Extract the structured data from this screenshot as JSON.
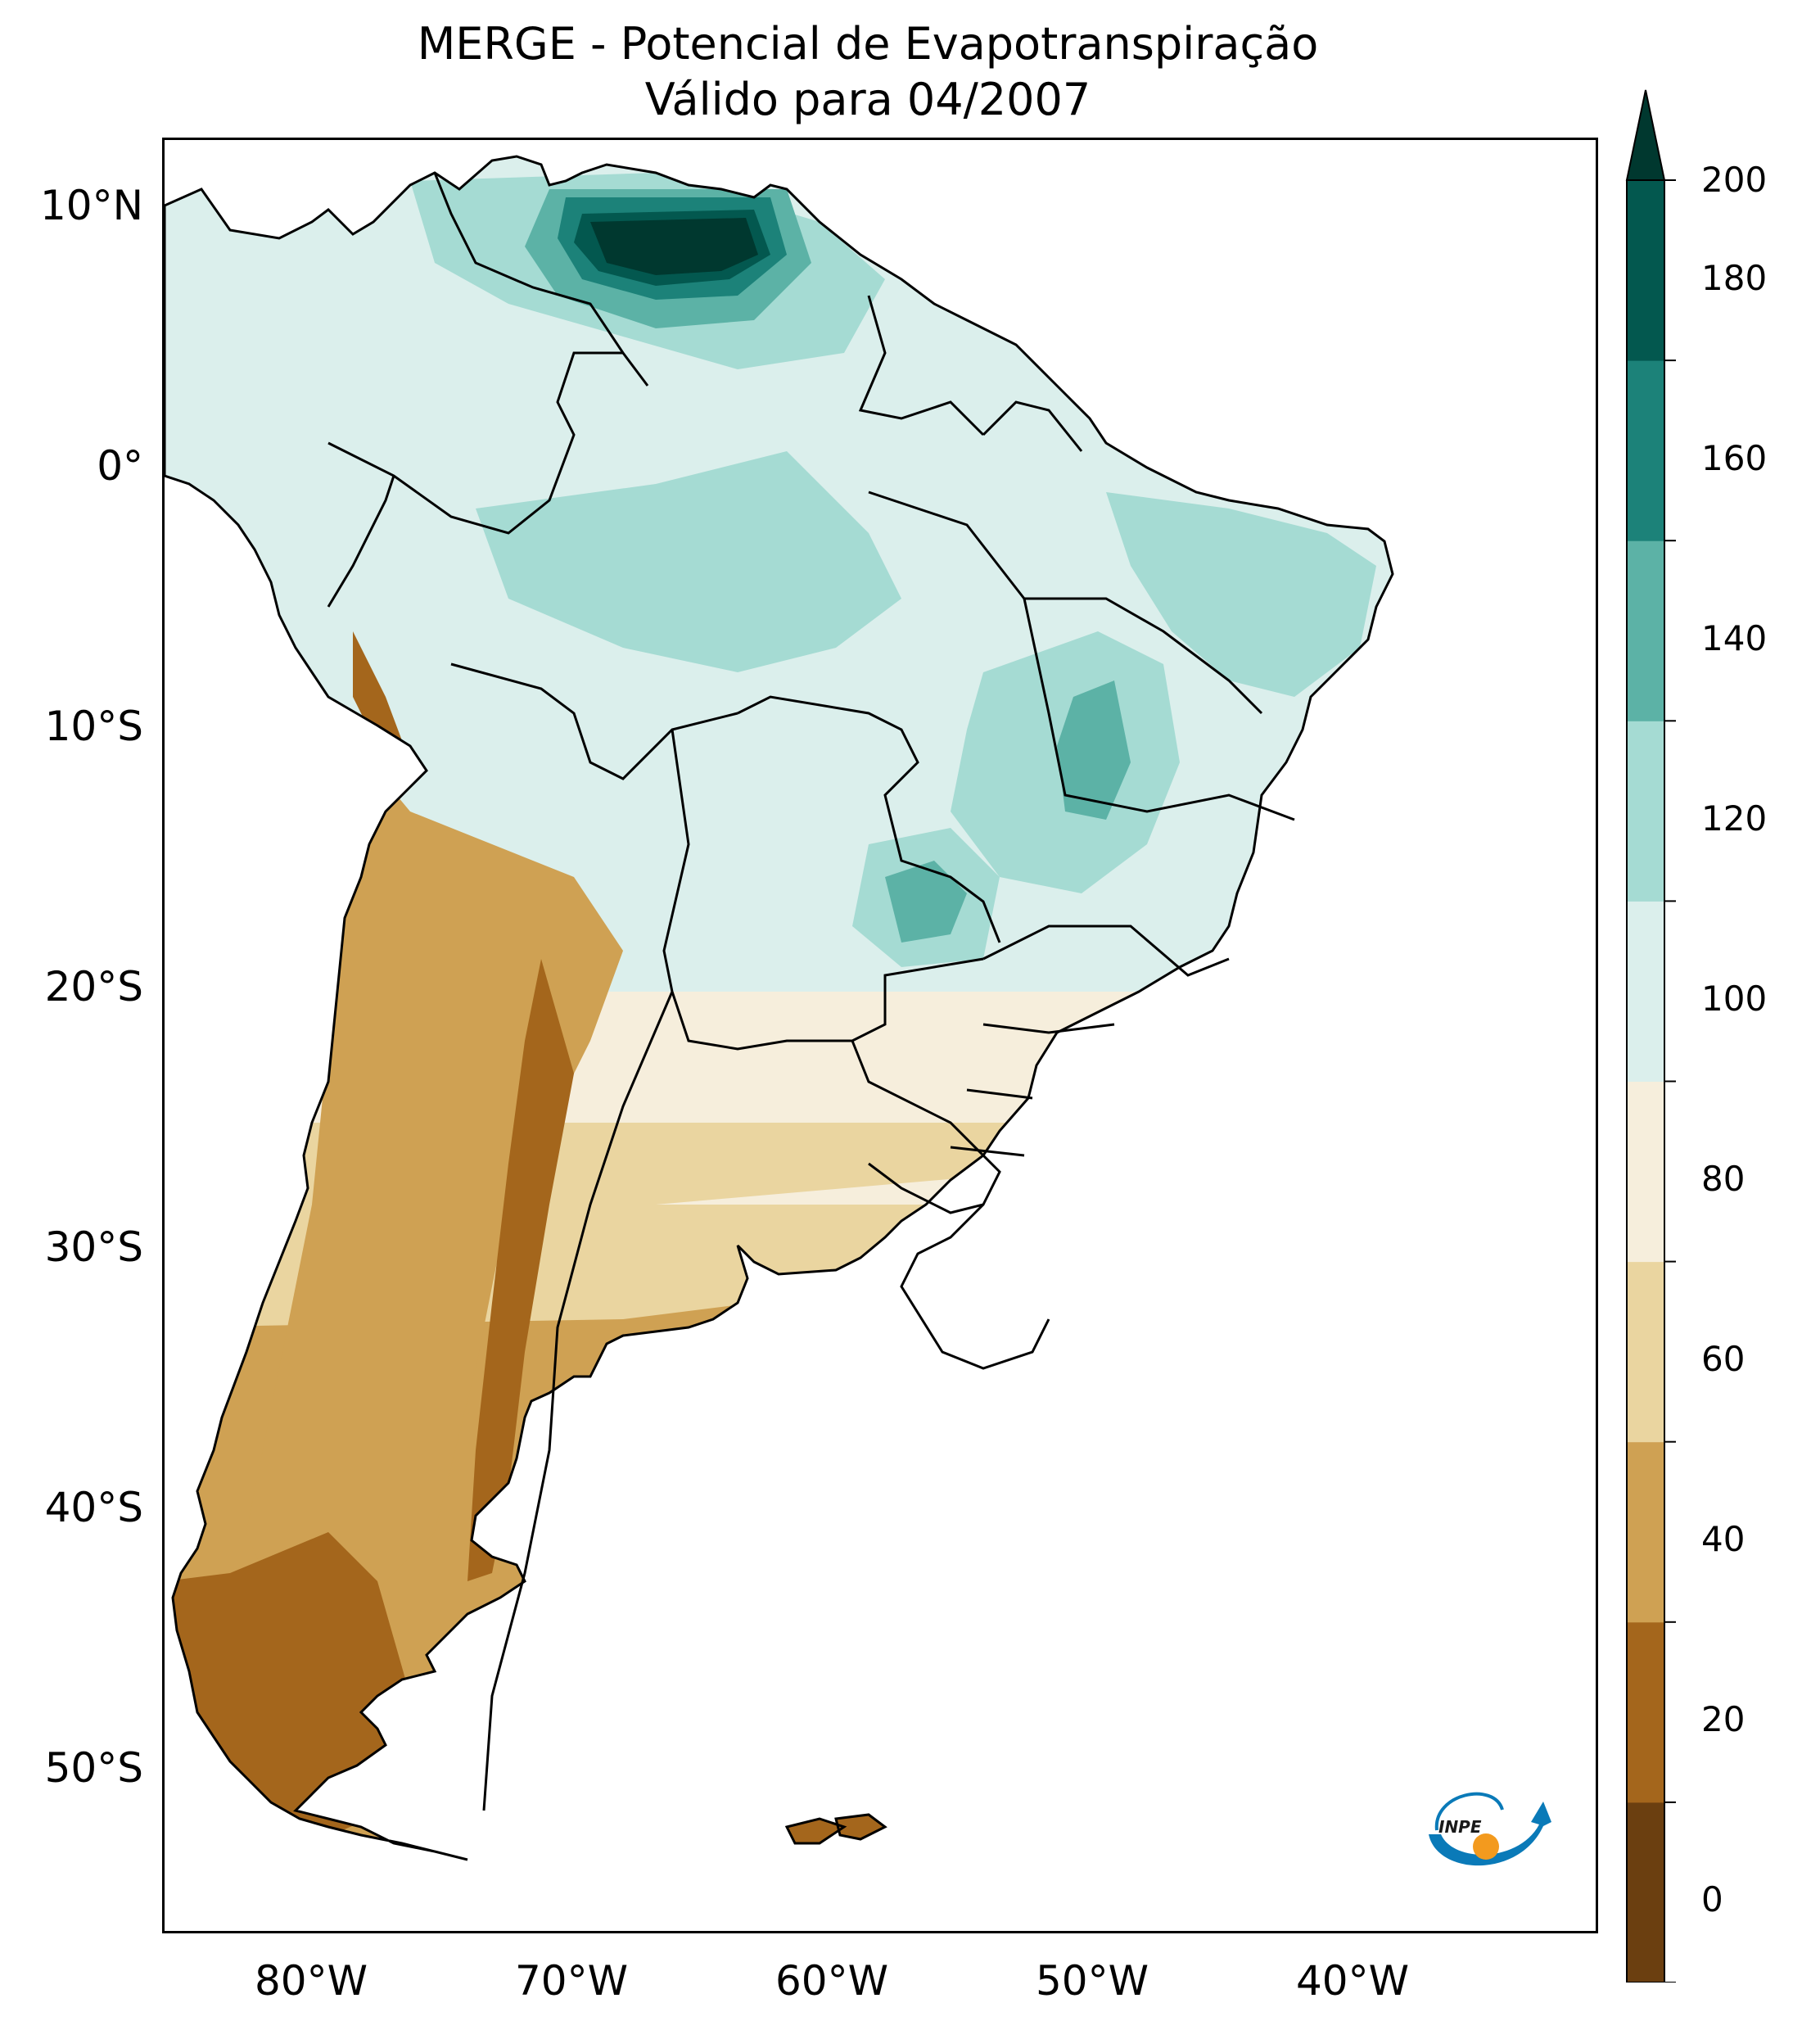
{
  "title": {
    "line1": "MERGE - Potencial de Evapotranspiração",
    "line2": "Válido para 04/2007"
  },
  "latitude_labels": [
    "10°N",
    "0°",
    "10°S",
    "20°S",
    "30°S",
    "40°S",
    "50°S"
  ],
  "longitude_labels": [
    "80°W",
    "70°W",
    "60°W",
    "50°W",
    "40°W"
  ],
  "colorbar": {
    "ticks": [
      "0",
      "20",
      "40",
      "60",
      "80",
      "100",
      "120",
      "140",
      "160",
      "180",
      "200"
    ],
    "colors": [
      "#6b3f10",
      "#a4661c",
      "#cfa153",
      "#ead5a0",
      "#f6eedc",
      "#dbefec",
      "#a5dbd3",
      "#5cb2a6",
      "#1c8279",
      "#03584f"
    ],
    "extend_color": "#00382f"
  },
  "logo_text": "INPE",
  "colors": {
    "ocean": "#ffffff",
    "border": "#000000"
  }
}
